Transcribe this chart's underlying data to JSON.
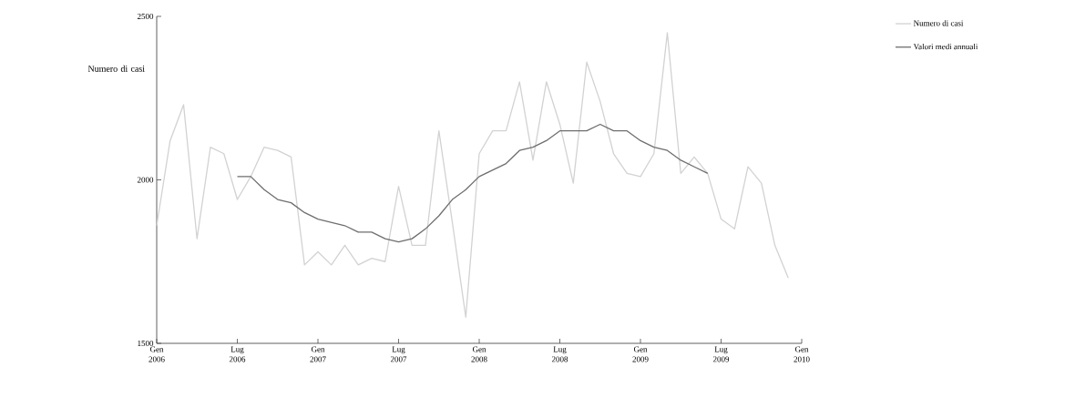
{
  "chart_data": {
    "type": "line",
    "ylabel": "Numero di casi",
    "x": [
      "2006-01",
      "2006-02",
      "2006-03",
      "2006-04",
      "2006-05",
      "2006-06",
      "2006-07",
      "2006-08",
      "2006-09",
      "2006-10",
      "2006-11",
      "2006-12",
      "2007-01",
      "2007-02",
      "2007-03",
      "2007-04",
      "2007-05",
      "2007-06",
      "2007-07",
      "2007-08",
      "2007-09",
      "2007-10",
      "2007-11",
      "2007-12",
      "2008-01",
      "2008-02",
      "2008-03",
      "2008-04",
      "2008-05",
      "2008-06",
      "2008-07",
      "2008-08",
      "2008-09",
      "2008-10",
      "2008-11",
      "2008-12",
      "2009-01",
      "2009-02",
      "2009-03",
      "2009-04",
      "2009-05",
      "2009-06",
      "2009-07",
      "2009-08",
      "2009-09",
      "2009-10",
      "2009-11",
      "2009-12"
    ],
    "series": [
      {
        "name": "Numero di casi",
        "color": "#d2d2d2",
        "values": [
          1860,
          2120,
          2230,
          1820,
          2100,
          2080,
          1940,
          2010,
          2100,
          2090,
          2070,
          1740,
          1780,
          1740,
          1800,
          1740,
          1760,
          1750,
          1980,
          1800,
          1800,
          2150,
          1870,
          1580,
          2080,
          2150,
          2150,
          2300,
          2060,
          2300,
          2170,
          1990,
          2360,
          2240,
          2080,
          2020,
          2010,
          2080,
          2450,
          2020,
          2070,
          2020,
          1880,
          1850,
          2040,
          1990,
          1800,
          1700
        ]
      },
      {
        "name": "Valori medi annuali",
        "color": "#6e6e6e",
        "values": [
          null,
          null,
          null,
          null,
          null,
          null,
          2010,
          2010,
          1970,
          1940,
          1930,
          1900,
          1880,
          1870,
          1860,
          1840,
          1840,
          1820,
          1810,
          1820,
          1850,
          1890,
          1940,
          1970,
          2010,
          2030,
          2050,
          2090,
          2100,
          2120,
          2150,
          2150,
          2150,
          2170,
          2150,
          2150,
          2120,
          2100,
          2090,
          2060,
          2040,
          2020,
          null,
          null,
          null,
          null,
          null,
          null
        ]
      }
    ],
    "xlim": [
      "2006-01",
      "2010-01"
    ],
    "xticks": [
      {
        "value": "2006-01",
        "label": "Gen 2006"
      },
      {
        "value": "2006-07",
        "label": "Lug 2006"
      },
      {
        "value": "2007-01",
        "label": "Gen 2007"
      },
      {
        "value": "2007-07",
        "label": "Lug 2007"
      },
      {
        "value": "2008-01",
        "label": "Gen 2008"
      },
      {
        "value": "2008-07",
        "label": "Lug 2008"
      },
      {
        "value": "2009-01",
        "label": "Gen 2009"
      },
      {
        "value": "2009-07",
        "label": "Lug 2009"
      },
      {
        "value": "2010-01",
        "label": "Gen 2010"
      }
    ],
    "ylim": [
      1500,
      2500
    ],
    "yticks": [
      1500,
      2000,
      2500
    ],
    "grid": false,
    "legend": "top right",
    "marker": "none",
    "line_style": "solid"
  }
}
